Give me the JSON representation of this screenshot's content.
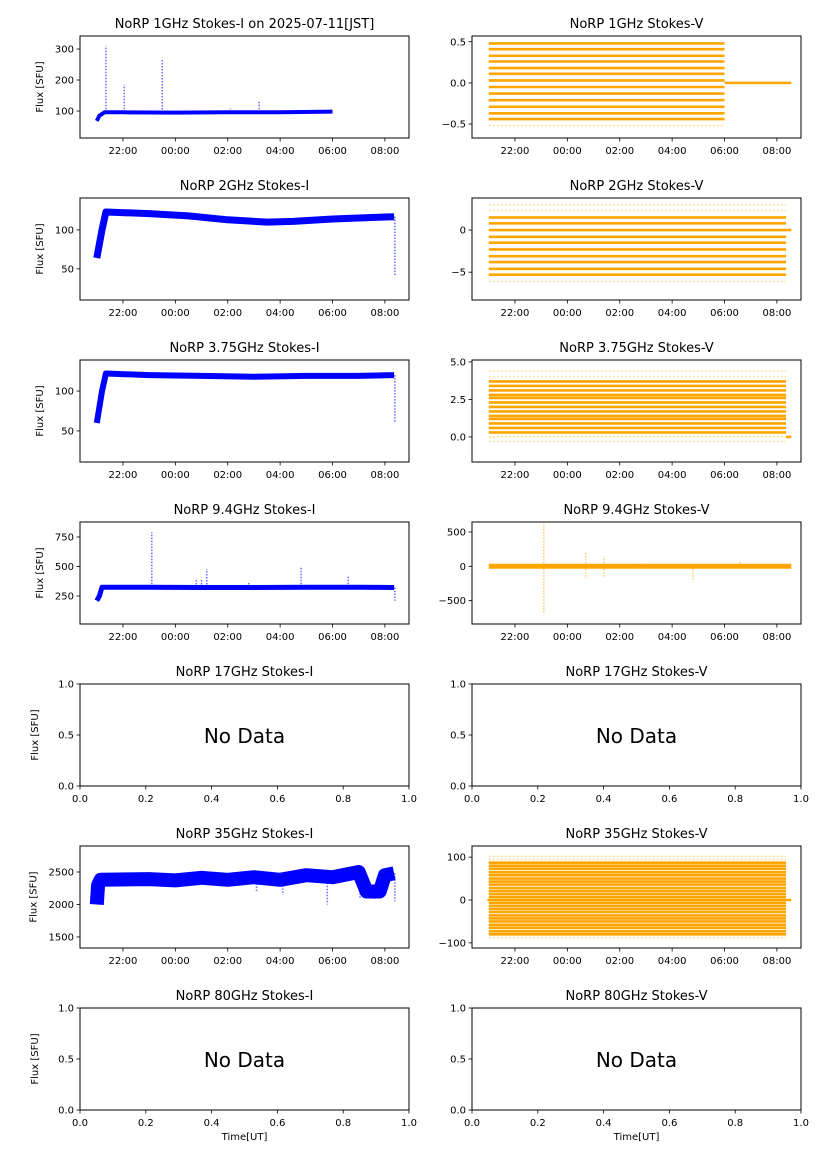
{
  "figure": {
    "x_time_label": "Time[UT]",
    "y_label": "Flux [SFU]",
    "no_data_text": "No Data",
    "colors": {
      "stokes_i": "#0000ff",
      "stokes_v": "#ffa500"
    }
  },
  "chart_data": [
    {
      "id": "p1i",
      "type": "scatter",
      "title": "NoRP 1GHz Stokes-I on 2025-07-11[JST]",
      "ylabel": "Flux [SFU]",
      "xlabel": "",
      "has_data": true,
      "color": "#0000ff",
      "xlim_hours": [
        20.36,
        32.92
      ],
      "ylim": [
        13,
        342
      ],
      "x_ticks": [
        "22:00",
        "00:00",
        "02:00",
        "04:00",
        "06:00",
        "08:00"
      ],
      "x_tick_hours": [
        22,
        24,
        26,
        28,
        30,
        32
      ],
      "y_ticks": [
        100,
        200,
        300
      ],
      "series": [
        {
          "name": "Stokes-I",
          "kind": "baseline",
          "points": [
            [
              21.0,
              68
            ],
            [
              21.1,
              85
            ],
            [
              21.3,
              96
            ],
            [
              22.0,
              96
            ],
            [
              24.0,
              95
            ],
            [
              26.0,
              96
            ],
            [
              28.0,
              96
            ],
            [
              30.0,
              98
            ]
          ],
          "band": 4,
          "spikes": [
            [
              21.35,
              310
            ],
            [
              22.05,
              185
            ],
            [
              23.5,
              265
            ],
            [
              26.1,
              108
            ],
            [
              27.2,
              130
            ]
          ]
        }
      ]
    },
    {
      "id": "p1v",
      "type": "scatter",
      "title": "NoRP 1GHz Stokes-V",
      "ylabel": "",
      "xlabel": "",
      "has_data": true,
      "color": "#ffa500",
      "xlim_hours": [
        20.36,
        32.92
      ],
      "ylim": [
        -0.67,
        0.57
      ],
      "x_ticks": [
        "22:00",
        "00:00",
        "02:00",
        "04:00",
        "06:00",
        "08:00"
      ],
      "x_tick_hours": [
        22,
        24,
        26,
        28,
        30,
        32
      ],
      "y_ticks": [
        -0.5,
        0.0,
        0.5
      ],
      "series": [
        {
          "name": "Stokes-V",
          "kind": "levels",
          "t_range": [
            21.0,
            30.0
          ],
          "levels": [
            -0.44,
            -0.37,
            -0.29,
            -0.21,
            -0.13,
            -0.05,
            0.03,
            0.11,
            0.18,
            0.26,
            0.33,
            0.41,
            0.48
          ],
          "faint_levels": [
            -0.44,
            0.41,
            0.48,
            -0.52
          ],
          "tail": {
            "t_range": [
              30.0,
              32.55
            ],
            "value": 0.0
          }
        }
      ]
    },
    {
      "id": "p2i",
      "type": "scatter",
      "title": "NoRP 2GHz Stokes-I",
      "ylabel": "Flux [SFU]",
      "xlabel": "",
      "has_data": true,
      "color": "#0000ff",
      "xlim_hours": [
        20.36,
        32.92
      ],
      "ylim": [
        10,
        141
      ],
      "x_ticks": [
        "22:00",
        "00:00",
        "02:00",
        "04:00",
        "06:00",
        "08:00"
      ],
      "x_tick_hours": [
        22,
        24,
        26,
        28,
        30,
        32
      ],
      "y_ticks": [
        50,
        100
      ],
      "series": [
        {
          "name": "Stokes-I",
          "kind": "baseline",
          "points": [
            [
              21.0,
              64
            ],
            [
              21.2,
              100
            ],
            [
              21.35,
              123
            ],
            [
              23.0,
              121
            ],
            [
              24.5,
              118
            ],
            [
              26.0,
              113
            ],
            [
              27.5,
              110
            ],
            [
              28.5,
              111
            ],
            [
              30.0,
              114
            ],
            [
              31.5,
              116
            ],
            [
              32.35,
              117
            ]
          ],
          "band": 7,
          "spikes": [
            [
              32.38,
              42
            ]
          ]
        }
      ]
    },
    {
      "id": "p2v",
      "type": "scatter",
      "title": "NoRP 2GHz Stokes-V",
      "ylabel": "",
      "xlabel": "",
      "has_data": true,
      "color": "#ffa500",
      "xlim_hours": [
        20.36,
        32.92
      ],
      "ylim": [
        -8.3,
        3.8
      ],
      "x_ticks": [
        "22:00",
        "00:00",
        "02:00",
        "04:00",
        "06:00",
        "08:00"
      ],
      "x_tick_hours": [
        22,
        24,
        26,
        28,
        30,
        32
      ],
      "y_ticks": [
        -5,
        0
      ],
      "series": [
        {
          "name": "Stokes-V",
          "kind": "levels",
          "t_range": [
            21.0,
            32.35
          ],
          "levels": [
            -5.3,
            -4.6,
            -3.8,
            -3.1,
            -2.3,
            -1.5,
            -0.8,
            0.0,
            0.8,
            1.5
          ],
          "faint_levels": [
            -6.1,
            2.3,
            3.0
          ],
          "tail": {
            "t_range": [
              32.35,
              32.55
            ],
            "value": 0.0
          }
        }
      ]
    },
    {
      "id": "p3i",
      "type": "scatter",
      "title": "NoRP 3.75GHz Stokes-I",
      "ylabel": "Flux [SFU]",
      "xlabel": "",
      "has_data": true,
      "color": "#0000ff",
      "xlim_hours": [
        20.36,
        32.92
      ],
      "ylim": [
        11,
        139
      ],
      "x_ticks": [
        "22:00",
        "00:00",
        "02:00",
        "04:00",
        "06:00",
        "08:00"
      ],
      "x_tick_hours": [
        22,
        24,
        26,
        28,
        30,
        32
      ],
      "y_ticks": [
        50,
        100
      ],
      "series": [
        {
          "name": "Stokes-I",
          "kind": "baseline",
          "points": [
            [
              21.0,
              60
            ],
            [
              21.2,
              100
            ],
            [
              21.35,
              122
            ],
            [
              23.0,
              120
            ],
            [
              25.0,
              119
            ],
            [
              27.0,
              118
            ],
            [
              29.0,
              119
            ],
            [
              31.0,
              119
            ],
            [
              32.35,
              120
            ]
          ],
          "band": 6,
          "spikes": [
            [
              32.38,
              60
            ]
          ]
        }
      ]
    },
    {
      "id": "p3v",
      "type": "scatter",
      "title": "NoRP 3.75GHz Stokes-V",
      "ylabel": "",
      "xlabel": "",
      "has_data": true,
      "color": "#ffa500",
      "xlim_hours": [
        20.36,
        32.92
      ],
      "ylim": [
        -1.67,
        5.13
      ],
      "x_ticks": [
        "22:00",
        "00:00",
        "02:00",
        "04:00",
        "06:00",
        "08:00"
      ],
      "x_tick_hours": [
        22,
        24,
        26,
        28,
        30,
        32
      ],
      "y_ticks": [
        0.0,
        2.5,
        5.0
      ],
      "series": [
        {
          "name": "Stokes-V",
          "kind": "levels",
          "t_range": [
            21.0,
            32.35
          ],
          "levels": [
            0.3,
            0.6,
            0.9,
            1.2,
            1.4,
            1.7,
            2.0,
            2.3,
            2.6,
            2.8,
            3.1,
            3.4,
            3.7
          ],
          "faint_levels": [
            4.0,
            4.4,
            0.0,
            -0.3
          ],
          "tail": {
            "t_range": [
              32.35,
              32.55
            ],
            "value": 0.0
          }
        }
      ]
    },
    {
      "id": "p4i",
      "type": "scatter",
      "title": "NoRP 9.4GHz Stokes-I",
      "ylabel": "Flux [SFU]",
      "xlabel": "",
      "has_data": true,
      "color": "#0000ff",
      "xlim_hours": [
        20.36,
        32.92
      ],
      "ylim": [
        13,
        877
      ],
      "x_ticks": [
        "22:00",
        "00:00",
        "02:00",
        "04:00",
        "06:00",
        "08:00"
      ],
      "x_tick_hours": [
        22,
        24,
        26,
        28,
        30,
        32
      ],
      "y_ticks": [
        250,
        500,
        750
      ],
      "series": [
        {
          "name": "Stokes-I",
          "kind": "baseline",
          "points": [
            [
              21.0,
              210
            ],
            [
              21.1,
              250
            ],
            [
              21.2,
              325
            ],
            [
              23.0,
              325
            ],
            [
              25.0,
              322
            ],
            [
              27.0,
              322
            ],
            [
              29.0,
              325
            ],
            [
              31.0,
              325
            ],
            [
              32.35,
              322
            ]
          ],
          "band": 5,
          "spikes": [
            [
              23.1,
              790
            ],
            [
              24.8,
              400
            ],
            [
              25.0,
              400
            ],
            [
              25.2,
              480
            ],
            [
              26.8,
              360
            ],
            [
              28.8,
              500
            ],
            [
              30.6,
              420
            ],
            [
              32.38,
              210
            ]
          ]
        }
      ]
    },
    {
      "id": "p4v",
      "type": "scatter",
      "title": "NoRP 9.4GHz Stokes-V",
      "ylabel": "",
      "xlabel": "",
      "has_data": true,
      "color": "#ffa500",
      "xlim_hours": [
        20.36,
        32.92
      ],
      "ylim": [
        -840,
        645
      ],
      "x_ticks": [
        "22:00",
        "00:00",
        "02:00",
        "04:00",
        "06:00",
        "08:00"
      ],
      "x_tick_hours": [
        22,
        24,
        26,
        28,
        30,
        32
      ],
      "y_ticks": [
        -500,
        0,
        500
      ],
      "series": [
        {
          "name": "Stokes-V",
          "kind": "baseline",
          "points": [
            [
              21.0,
              0
            ],
            [
              32.55,
              0
            ]
          ],
          "band": 5,
          "spikes": [
            [
              23.1,
              620
            ],
            [
              23.1,
              -700
            ],
            [
              24.7,
              200
            ],
            [
              24.7,
              -180
            ],
            [
              25.4,
              140
            ],
            [
              25.4,
              -150
            ],
            [
              26.8,
              50
            ],
            [
              28.8,
              -220
            ],
            [
              30.6,
              90
            ]
          ]
        }
      ]
    },
    {
      "id": "p5i",
      "type": "empty",
      "title": "NoRP 17GHz Stokes-I",
      "ylabel": "Flux [SFU]",
      "xlabel": "",
      "has_data": false,
      "xlim": [
        0,
        1
      ],
      "ylim": [
        0,
        1
      ],
      "x_ticks": [
        "0.0",
        "0.2",
        "0.4",
        "0.6",
        "0.8",
        "1.0"
      ],
      "y_ticks": [
        "0.0",
        "0.5",
        "1.0"
      ],
      "annotation": "No Data"
    },
    {
      "id": "p5v",
      "type": "empty",
      "title": "NoRP 17GHz Stokes-V",
      "ylabel": "",
      "xlabel": "",
      "has_data": false,
      "xlim": [
        0,
        1
      ],
      "ylim": [
        0,
        1
      ],
      "x_ticks": [
        "0.0",
        "0.2",
        "0.4",
        "0.6",
        "0.8",
        "1.0"
      ],
      "y_ticks": [
        "0.0",
        "0.5",
        "1.0"
      ],
      "annotation": "No Data"
    },
    {
      "id": "p6i",
      "type": "scatter",
      "title": "NoRP 35GHz Stokes-I",
      "ylabel": "Flux [SFU]",
      "xlabel": "",
      "has_data": true,
      "color": "#0000ff",
      "xlim_hours": [
        20.36,
        32.92
      ],
      "ylim": [
        1330,
        2900
      ],
      "x_ticks": [
        "22:00",
        "00:00",
        "02:00",
        "04:00",
        "06:00",
        "08:00"
      ],
      "x_tick_hours": [
        22,
        24,
        26,
        28,
        30,
        32
      ],
      "y_ticks": [
        1500,
        2000,
        2500
      ],
      "series": [
        {
          "name": "Stokes-I",
          "kind": "baseline",
          "points": [
            [
              21.0,
              2000
            ],
            [
              21.05,
              2300
            ],
            [
              21.15,
              2380
            ],
            [
              23.0,
              2390
            ],
            [
              24.0,
              2370
            ],
            [
              25.0,
              2410
            ],
            [
              26.0,
              2380
            ],
            [
              27.0,
              2420
            ],
            [
              28.0,
              2380
            ],
            [
              29.0,
              2450
            ],
            [
              30.0,
              2420
            ],
            [
              31.0,
              2500
            ],
            [
              31.3,
              2200
            ],
            [
              31.8,
              2200
            ],
            [
              32.0,
              2450
            ],
            [
              32.35,
              2480
            ]
          ],
          "band": 14,
          "spikes": [
            [
              27.1,
              2200
            ],
            [
              28.1,
              2150
            ],
            [
              29.8,
              2000
            ],
            [
              31.05,
              2080
            ],
            [
              31.6,
              2080
            ],
            [
              32.38,
              2050
            ]
          ]
        }
      ]
    },
    {
      "id": "p6v",
      "type": "scatter",
      "title": "NoRP 35GHz Stokes-V",
      "ylabel": "",
      "xlabel": "",
      "has_data": true,
      "color": "#ffa500",
      "xlim_hours": [
        20.36,
        32.92
      ],
      "ylim": [
        -112,
        126
      ],
      "x_ticks": [
        "22:00",
        "00:00",
        "02:00",
        "04:00",
        "06:00",
        "08:00"
      ],
      "x_tick_hours": [
        22,
        24,
        26,
        28,
        30,
        32
      ],
      "y_ticks": [
        -100,
        0,
        100
      ],
      "series": [
        {
          "name": "Stokes-V",
          "kind": "levels",
          "t_range": [
            21.0,
            32.35
          ],
          "levels": [
            -80,
            -73,
            -65,
            -58,
            -50,
            -43,
            -36,
            -28,
            -21,
            -14,
            -7,
            0,
            7,
            14,
            21,
            28,
            36,
            43,
            50,
            58,
            65,
            73,
            80,
            87
          ],
          "faint_levels": [
            -88,
            95,
            102
          ],
          "tail": {
            "t_range": [
              20.95,
              32.55
            ],
            "value": 0
          }
        }
      ]
    },
    {
      "id": "p7i",
      "type": "empty",
      "title": "NoRP 80GHz Stokes-I",
      "ylabel": "Flux [SFU]",
      "xlabel": "Time[UT]",
      "has_data": false,
      "xlim": [
        0,
        1
      ],
      "ylim": [
        0,
        1
      ],
      "x_ticks": [
        "0.0",
        "0.2",
        "0.4",
        "0.6",
        "0.8",
        "1.0"
      ],
      "y_ticks": [
        "0.0",
        "0.5",
        "1.0"
      ],
      "annotation": "No Data"
    },
    {
      "id": "p7v",
      "type": "empty",
      "title": "NoRP 80GHz Stokes-V",
      "ylabel": "",
      "xlabel": "Time[UT]",
      "has_data": false,
      "xlim": [
        0,
        1
      ],
      "ylim": [
        0,
        1
      ],
      "x_ticks": [
        "0.0",
        "0.2",
        "0.4",
        "0.6",
        "0.8",
        "1.0"
      ],
      "y_ticks": [
        "0.0",
        "0.5",
        "1.0"
      ],
      "annotation": "No Data"
    }
  ]
}
